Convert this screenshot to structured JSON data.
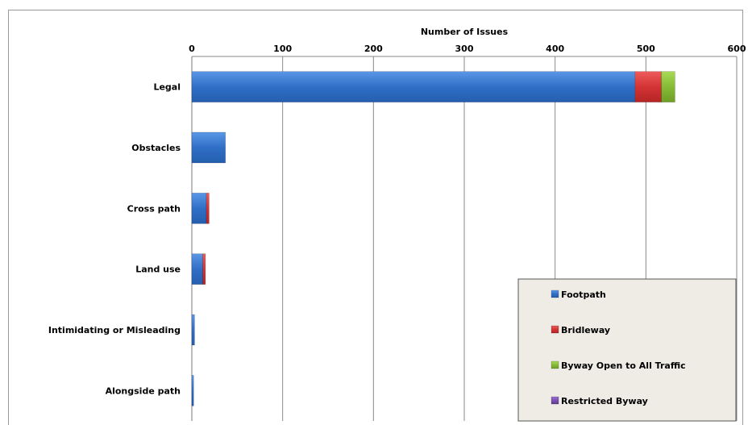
{
  "chart_data": {
    "type": "bar",
    "orientation": "horizontal",
    "stacked": true,
    "xlabel": "Number of Issues",
    "xlim": [
      0,
      600
    ],
    "xticks": [
      0,
      100,
      200,
      300,
      400,
      500,
      600
    ],
    "grid": true,
    "legend_position": "bottom-right",
    "categories": [
      "Legal",
      "Obstacles",
      "Cross path",
      "Land use",
      "Intimidating or Misleading",
      "Alongside path"
    ],
    "series": [
      {
        "name": "Footpath",
        "color": "#3a7bd5",
        "values": [
          488,
          37,
          16,
          12,
          3,
          2
        ]
      },
      {
        "name": "Bridleway",
        "color": "#d93a3a",
        "values": [
          29,
          0,
          3,
          3,
          0,
          0
        ]
      },
      {
        "name": "Byway Open to All Traffic",
        "color": "#8fc43c",
        "values": [
          15,
          0,
          0,
          0,
          0,
          0
        ]
      },
      {
        "name": "Restricted Byway",
        "color": "#7b4fb3",
        "values": [
          0,
          0,
          0,
          0,
          0,
          0
        ]
      }
    ]
  }
}
